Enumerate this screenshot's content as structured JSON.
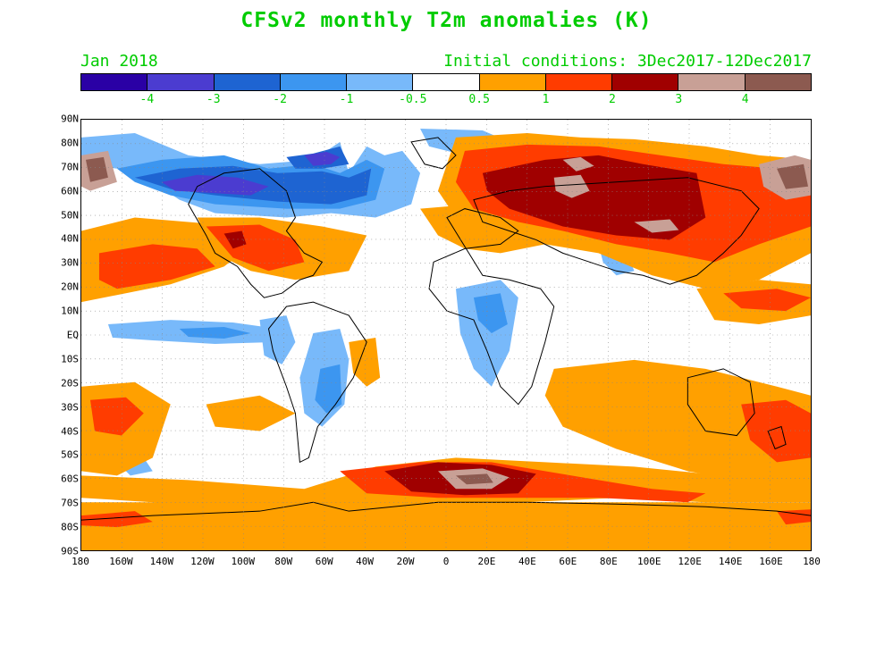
{
  "title": "CFSv2 monthly T2m anomalies (K)",
  "month_label": "Jan 2018",
  "initial_conditions": "Initial conditions: 3Dec2017-12Dec2017",
  "colorbar": {
    "colors": [
      "#2a00a5",
      "#4b3cd0",
      "#1e64d2",
      "#3c96f0",
      "#78b9fa",
      "#ffffff",
      "#ffa000",
      "#ff3c00",
      "#a00000",
      "#c8a096",
      "#8c5a50"
    ],
    "labels": [
      "-4",
      "-3",
      "-2",
      "-1",
      "-0.5",
      "0.5",
      "1",
      "2",
      "3",
      "4"
    ]
  },
  "latitude_labels": [
    "90N",
    "80N",
    "70N",
    "60N",
    "50N",
    "40N",
    "30N",
    "20N",
    "10N",
    "EQ",
    "10S",
    "20S",
    "30S",
    "40S",
    "50S",
    "60S",
    "70S",
    "80S",
    "90S"
  ],
  "longitude_labels": [
    "180",
    "160W",
    "140W",
    "120W",
    "100W",
    "80W",
    "60W",
    "40W",
    "20W",
    "0",
    "20E",
    "40E",
    "60E",
    "80E",
    "100E",
    "120E",
    "140E",
    "160E",
    "180"
  ],
  "map": {
    "projection": "equirectangular",
    "grid": "dotted",
    "variable": "2m temperature anomaly",
    "units": "K"
  }
}
